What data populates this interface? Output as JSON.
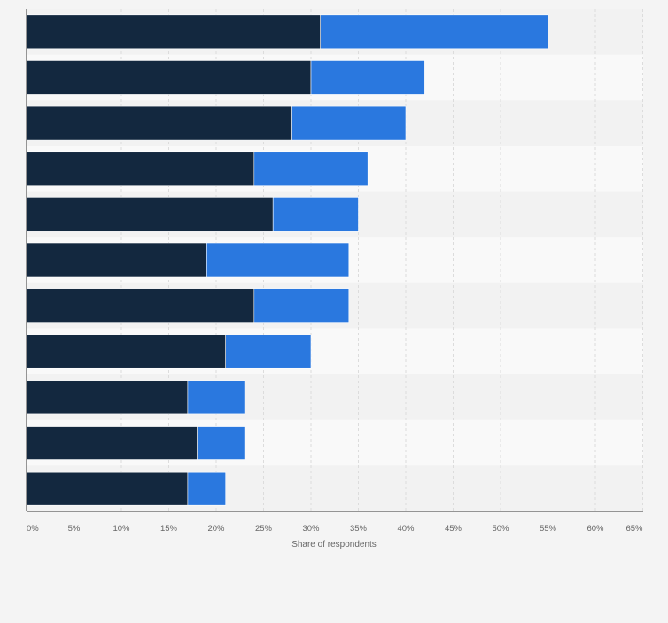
{
  "chart_data": {
    "type": "bar",
    "orientation": "horizontal",
    "stacked": true,
    "categories": [
      "",
      "",
      "",
      "",
      "",
      "",
      "",
      "",
      "",
      "",
      ""
    ],
    "series": [
      {
        "values": [
          31,
          30,
          28,
          24,
          26,
          19,
          24,
          21,
          17,
          18,
          17
        ],
        "color": "#13283f"
      },
      {
        "values": [
          24,
          12,
          12,
          12,
          9,
          15,
          10,
          9,
          6,
          5,
          4
        ],
        "color": "#2a78df"
      }
    ],
    "xlabel": "Share of respondents",
    "ylabel": "",
    "xlim": [
      0,
      65
    ],
    "x_ticks": [
      "0%",
      "5%",
      "10%",
      "15%",
      "20%",
      "25%",
      "30%",
      "35%",
      "40%",
      "45%",
      "50%",
      "55%",
      "60%",
      "65%"
    ],
    "grid": "vertical",
    "legend": "none"
  },
  "colors": {
    "band_dark": "#f2f2f2",
    "band_light": "#f9f9f9",
    "gridline": "#dcdcdc",
    "axis": "#333333",
    "tick_text": "#666666"
  }
}
